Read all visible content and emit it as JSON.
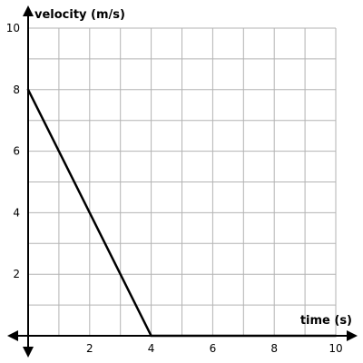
{
  "chart_data": {
    "type": "line",
    "xlabel": "time (s)",
    "ylabel": "velocity (m/s)",
    "xlim": [
      0,
      10
    ],
    "ylim": [
      0,
      10
    ],
    "x_ticks": [
      2,
      4,
      6,
      8,
      10
    ],
    "y_ticks": [
      2,
      4,
      6,
      8,
      10
    ],
    "grid": true,
    "grid_step": 1,
    "series": [
      {
        "x": [
          0,
          4,
          10
        ],
        "y": [
          8,
          0,
          0
        ],
        "color": "#000000"
      }
    ]
  }
}
